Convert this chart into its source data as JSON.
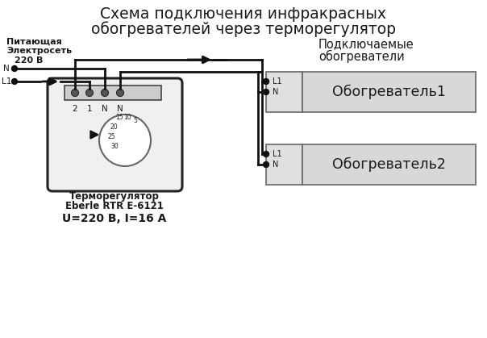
{
  "title_line1": "Схема подключения инфракрасных",
  "title_line2": "обогревателей через терморегулятор",
  "bg_color": "#ffffff",
  "fg_color": "#1a1a1a",
  "power_label1": "Питающая",
  "power_label2": "Электросеть",
  "power_label3": "220 В",
  "heaters_label1": "Подключаемые",
  "heaters_label2": "обогреватели",
  "heater1_label": "Обогреватель1",
  "heater2_label": "Обогреватель2",
  "thermostat_label1": "Терморегулятор",
  "thermostat_label2": "Eberle RTR E-6121",
  "thermostat_label3": "U=220 В, I=16 А",
  "pin_labels": [
    "2",
    "1",
    "N",
    "N"
  ],
  "heater_box_color": "#d8d8d8",
  "heater_box_edge": "#666666",
  "heater_left_color": "#e8e8e8",
  "thermostat_box_color": "#f0f0f0",
  "thermostat_box_edge": "#222222",
  "line_color": "#111111",
  "wire_lw": 2.0
}
